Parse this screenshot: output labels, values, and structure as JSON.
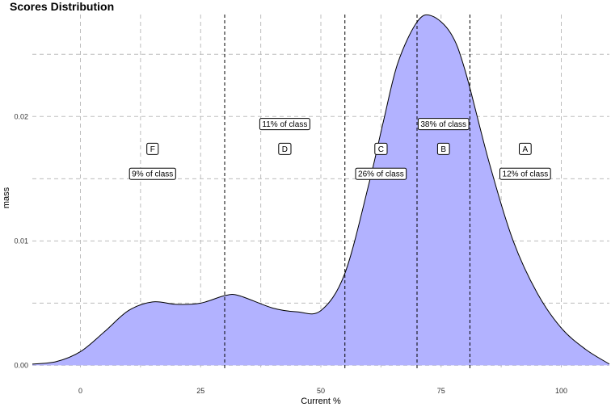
{
  "chart_data": {
    "type": "area",
    "title": "Scores Distribution",
    "xlabel": "Current %",
    "ylabel": "mass",
    "xlim": [
      -10,
      110
    ],
    "ylim": [
      -0.0003,
      0.0282
    ],
    "x_ticks": [
      0,
      25,
      50,
      75,
      100
    ],
    "y_ticks": [
      0.0,
      0.01,
      0.02
    ],
    "y_tick_labels": [
      "0.00",
      "0.01",
      "0.02"
    ],
    "y_minor_gridlines": [
      0.005,
      0.015,
      0.025
    ],
    "x_minor_gridlines": [
      12.5,
      37.5,
      62.5,
      87.5
    ],
    "grid": true,
    "fill_color": "#b2b2ff",
    "line_color": "#000000",
    "density": {
      "x": [
        -10,
        -5,
        0,
        5,
        10,
        15,
        20,
        25,
        30,
        33,
        40,
        45,
        50,
        55,
        60,
        63,
        66,
        70,
        73,
        77,
        80,
        85,
        90,
        95,
        100,
        105,
        110
      ],
      "y": [
        0.0001,
        0.0003,
        0.0011,
        0.0027,
        0.0044,
        0.0051,
        0.0049,
        0.005,
        0.0056,
        0.0056,
        0.0046,
        0.0043,
        0.0044,
        0.0074,
        0.0146,
        0.0196,
        0.0243,
        0.0276,
        0.0281,
        0.0267,
        0.0237,
        0.0163,
        0.01,
        0.0058,
        0.003,
        0.0013,
        0.0001
      ]
    },
    "cutoffs": [
      30,
      55,
      70,
      81
    ],
    "grades": [
      {
        "letter": "F",
        "x": 15,
        "y": 0.0174,
        "share": "9% of class",
        "share_x": 15,
        "share_y": 0.0154
      },
      {
        "letter": "D",
        "x": 42.5,
        "y": 0.0174,
        "share": "11% of class",
        "share_x": 42.5,
        "share_y": 0.0194
      },
      {
        "letter": "C",
        "x": 62.5,
        "y": 0.0174,
        "share": "26% of class",
        "share_x": 62.5,
        "share_y": 0.0154
      },
      {
        "letter": "B",
        "x": 75.5,
        "y": 0.0174,
        "share": "38% of class",
        "share_x": 75.5,
        "share_y": 0.0194
      },
      {
        "letter": "A",
        "x": 92.5,
        "y": 0.0174,
        "share": "12% of class",
        "share_x": 92.5,
        "share_y": 0.0154
      }
    ]
  }
}
